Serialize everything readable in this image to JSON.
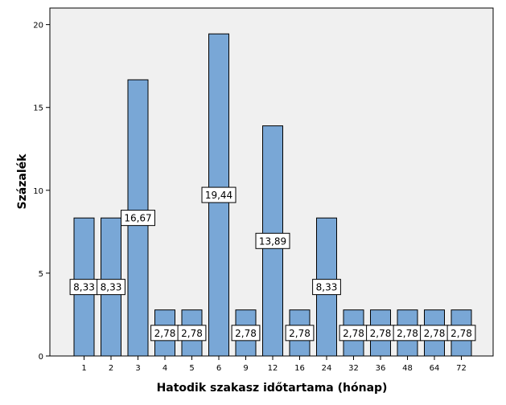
{
  "chart_data": {
    "type": "bar",
    "title": "",
    "xlabel": "Hatodik szakasz időtartama (hónap)",
    "ylabel": "Százalék",
    "categories": [
      "1",
      "2",
      "3",
      "4",
      "5",
      "6",
      "9",
      "12",
      "16",
      "24",
      "32",
      "36",
      "48",
      "64",
      "72"
    ],
    "values": [
      8.33,
      8.33,
      16.67,
      2.78,
      2.78,
      19.44,
      2.78,
      13.89,
      2.78,
      8.33,
      2.78,
      2.78,
      2.78,
      2.78,
      2.78
    ],
    "data_labels": [
      "8,33",
      "8,33",
      "16,67",
      "2,78",
      "2,78",
      "19,44",
      "2,78",
      "13,89",
      "2,78",
      "8,33",
      "2,78",
      "2,78",
      "2,78",
      "2,78",
      "2,78"
    ],
    "yticks": [
      "0",
      "5",
      "10",
      "15",
      "20"
    ],
    "ylim": [
      0,
      21
    ],
    "grid": false,
    "colors": {
      "plot_background": "#f0f0f0",
      "bar_fill": "#79a7d6",
      "bar_stroke": "#000000",
      "label_box": "#ffffff"
    }
  }
}
